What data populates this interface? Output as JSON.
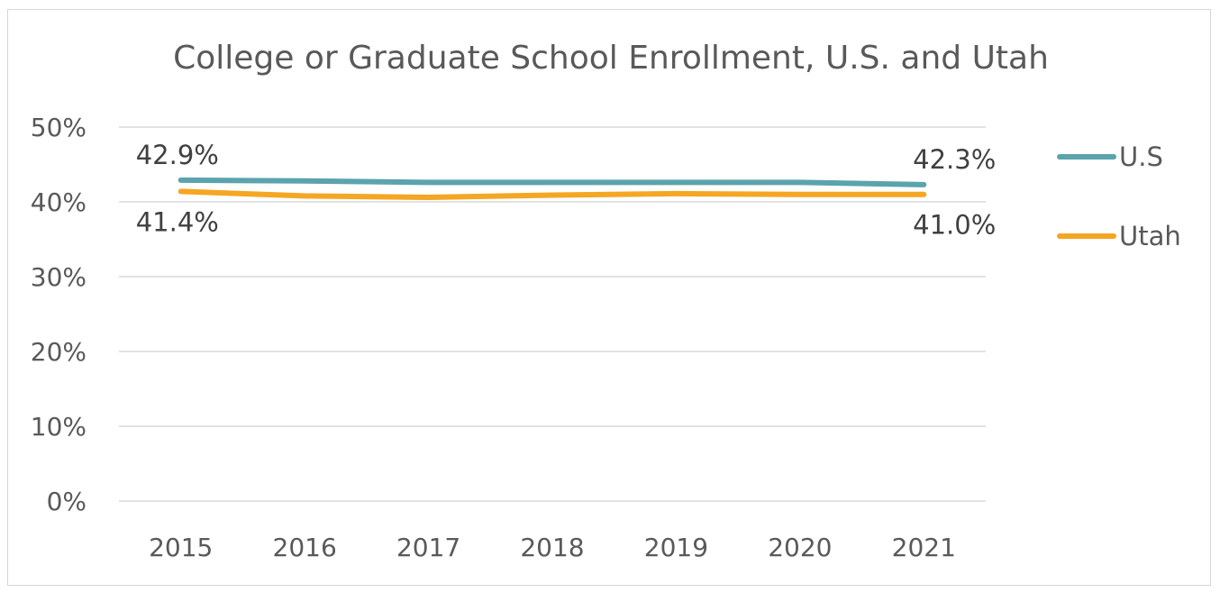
{
  "chart_data": {
    "type": "line",
    "title": "College or Graduate School Enrollment, U.S. and Utah",
    "xlabel": "",
    "ylabel": "",
    "x": [
      "2015",
      "2016",
      "2017",
      "2018",
      "2019",
      "2020",
      "2021"
    ],
    "ylim": [
      0,
      50
    ],
    "yticks": [
      0,
      10,
      20,
      30,
      40,
      50
    ],
    "ytick_labels": [
      "0%",
      "10%",
      "20%",
      "30%",
      "40%",
      "50%"
    ],
    "grid": true,
    "legend": "right",
    "series": [
      {
        "name": "U.S",
        "color": "#5ba3ad",
        "values": [
          42.9,
          42.8,
          42.6,
          42.6,
          42.6,
          42.6,
          42.3
        ],
        "labels": [
          {
            "index": 0,
            "text": "42.9%"
          },
          {
            "index": 6,
            "text": "42.3%"
          }
        ]
      },
      {
        "name": "Utah",
        "color": "#f5a623",
        "values": [
          41.4,
          40.8,
          40.6,
          40.9,
          41.1,
          41.0,
          41.0
        ],
        "labels": [
          {
            "index": 0,
            "text": "41.4%"
          },
          {
            "index": 6,
            "text": "41.0%"
          }
        ]
      }
    ]
  }
}
